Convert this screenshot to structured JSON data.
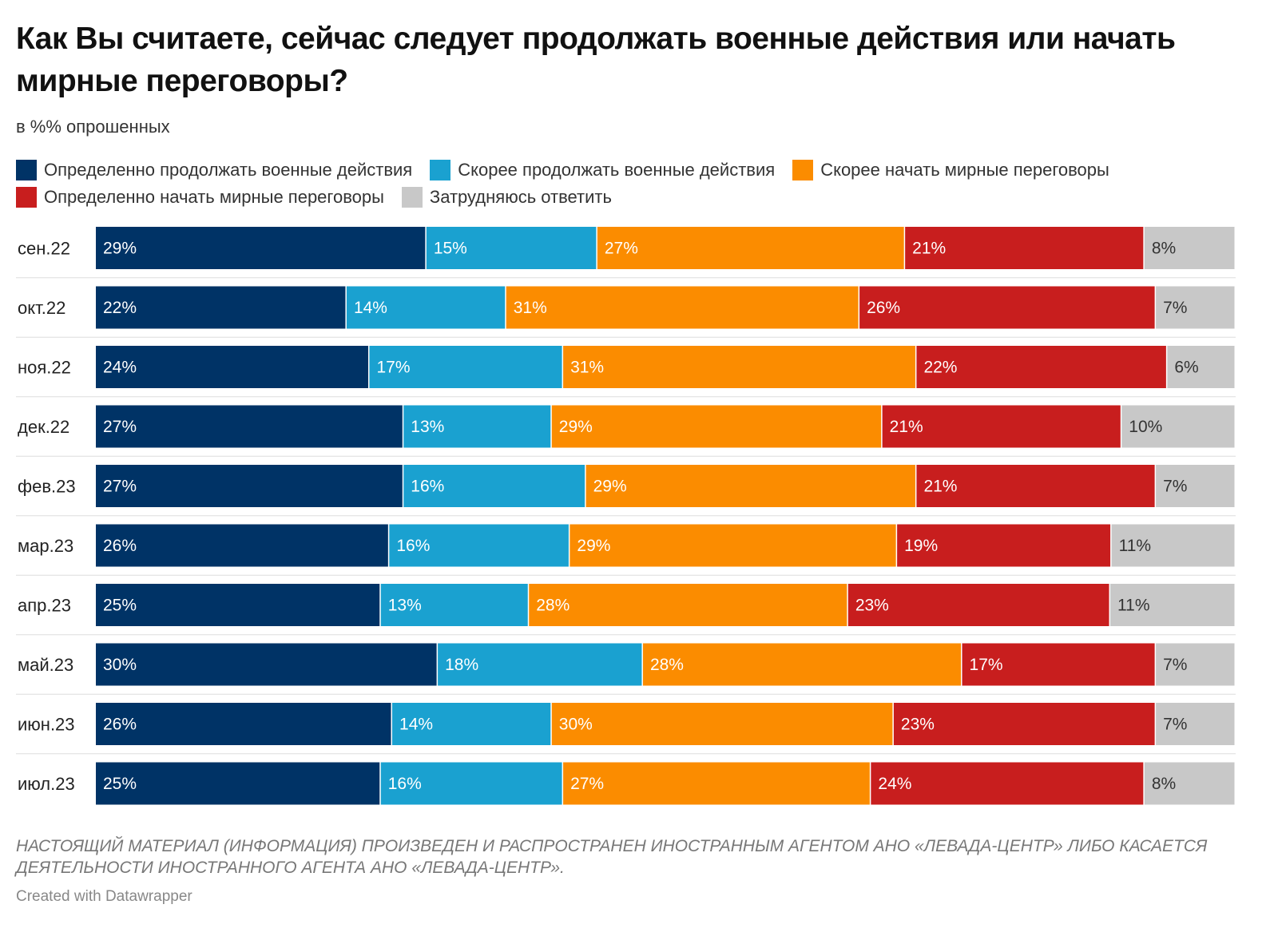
{
  "chart_data": {
    "type": "bar",
    "orientation": "horizontal",
    "stacked": true,
    "normalized_to_100": true,
    "title": "Как Вы считаете, сейчас следует продолжать военные действия или начать мирные переговоры?",
    "subtitle": "в %% опрошенных",
    "categories": [
      "сен.22",
      "окт.22",
      "ноя.22",
      "дек.22",
      "фев.23",
      "мар.23",
      "апр.23",
      "май.23",
      "июн.23",
      "июл.23"
    ],
    "series": [
      {
        "name": "Определенно продолжать военные действия",
        "color": "#003366",
        "text_color": "#ffffff",
        "values": [
          29,
          22,
          24,
          27,
          27,
          26,
          25,
          30,
          26,
          25
        ]
      },
      {
        "name": "Скорее продолжать военные действия",
        "color": "#1aa1d0",
        "text_color": "#ffffff",
        "values": [
          15,
          14,
          17,
          13,
          16,
          16,
          13,
          18,
          14,
          16
        ]
      },
      {
        "name": "Скорее начать мирные переговоры",
        "color": "#fb8c00",
        "text_color": "#ffffff",
        "values": [
          27,
          31,
          31,
          29,
          29,
          29,
          28,
          28,
          30,
          27
        ]
      },
      {
        "name": "Определенно начать мирные переговоры",
        "color": "#c81e1e",
        "text_color": "#ffffff",
        "values": [
          21,
          26,
          22,
          21,
          21,
          19,
          23,
          17,
          23,
          24
        ]
      },
      {
        "name": "Затрудняюсь ответить",
        "color": "#c8c8c8",
        "text_color": "#333333",
        "values": [
          8,
          7,
          6,
          10,
          7,
          11,
          11,
          7,
          7,
          8
        ]
      }
    ],
    "value_suffix": "%",
    "legend_position": "top",
    "grid": false
  },
  "footnote": "НАСТОЯЩИЙ МАТЕРИАЛ (ИНФОРМАЦИЯ) ПРОИЗВЕДЕН И РАСПРОСТРАНЕН ИНОСТРАННЫМ АГЕНТОМ АНО «ЛЕВАДА-ЦЕНТР» ЛИБО КАСАЕТСЯ ДЕЯТЕЛЬНОСТИ ИНОСТРАННОГО АГЕНТА АНО «ЛЕВАДА-ЦЕНТР».",
  "credit": "Created with Datawrapper"
}
